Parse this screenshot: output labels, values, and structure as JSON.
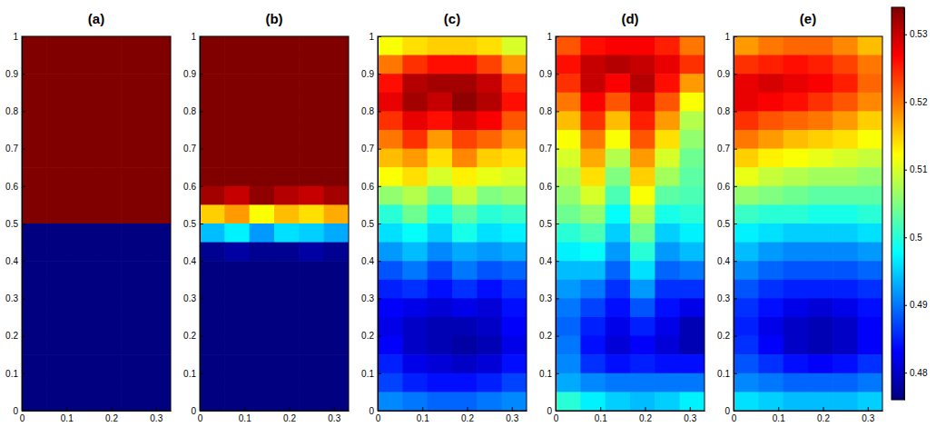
{
  "chart_data": [
    {
      "type": "heatmap",
      "title": "(a)",
      "color": "jet",
      "xlim": [
        0,
        0.333
      ],
      "ylim": [
        0,
        1
      ],
      "xticks": [
        0,
        0.1,
        0.2,
        0.3
      ],
      "yticks": [
        0,
        0.1,
        0.2,
        0.3,
        0.4,
        0.5,
        0.6,
        0.7,
        0.8,
        0.9,
        1
      ],
      "x_bins": [
        0,
        0.0555,
        0.111,
        0.1665,
        0.222,
        0.2775,
        0.333
      ],
      "y_bins": [
        1,
        0.95,
        0.9,
        0.85,
        0.8,
        0.75,
        0.7,
        0.65,
        0.6,
        0.55,
        0.5,
        0.45,
        0.4,
        0.35,
        0.3,
        0.25,
        0.2,
        0.15,
        0.1,
        0.05,
        0
      ],
      "cells": [
        [
          0.534,
          0.534,
          0.534,
          0.534,
          0.534,
          0.534
        ],
        [
          0.534,
          0.534,
          0.534,
          0.534,
          0.534,
          0.534
        ],
        [
          0.534,
          0.534,
          0.534,
          0.534,
          0.534,
          0.534
        ],
        [
          0.534,
          0.534,
          0.534,
          0.534,
          0.534,
          0.534
        ],
        [
          0.534,
          0.534,
          0.534,
          0.534,
          0.534,
          0.534
        ],
        [
          0.534,
          0.534,
          0.534,
          0.534,
          0.534,
          0.534
        ],
        [
          0.534,
          0.534,
          0.534,
          0.534,
          0.534,
          0.534
        ],
        [
          0.534,
          0.534,
          0.534,
          0.534,
          0.534,
          0.534
        ],
        [
          0.534,
          0.534,
          0.534,
          0.534,
          0.534,
          0.534
        ],
        [
          0.534,
          0.534,
          0.534,
          0.534,
          0.534,
          0.534
        ],
        [
          0.476,
          0.476,
          0.476,
          0.476,
          0.476,
          0.476
        ],
        [
          0.476,
          0.476,
          0.476,
          0.476,
          0.476,
          0.476
        ],
        [
          0.476,
          0.476,
          0.476,
          0.476,
          0.476,
          0.476
        ],
        [
          0.476,
          0.476,
          0.476,
          0.476,
          0.476,
          0.476
        ],
        [
          0.476,
          0.476,
          0.476,
          0.476,
          0.476,
          0.476
        ],
        [
          0.476,
          0.476,
          0.476,
          0.476,
          0.476,
          0.476
        ],
        [
          0.476,
          0.476,
          0.476,
          0.476,
          0.476,
          0.476
        ],
        [
          0.476,
          0.476,
          0.476,
          0.476,
          0.476,
          0.476
        ],
        [
          0.476,
          0.476,
          0.476,
          0.476,
          0.476,
          0.476
        ],
        [
          0.476,
          0.476,
          0.476,
          0.476,
          0.476,
          0.476
        ]
      ]
    },
    {
      "type": "heatmap",
      "title": "(b)",
      "color": "jet",
      "xlim": [
        0,
        0.333
      ],
      "ylim": [
        0,
        1
      ],
      "xticks": [
        0,
        0.1,
        0.2,
        0.3
      ],
      "yticks": [
        0,
        0.1,
        0.2,
        0.3,
        0.4,
        0.5,
        0.6,
        0.7,
        0.8,
        0.9,
        1
      ],
      "x_bins": [
        0,
        0.0555,
        0.111,
        0.1665,
        0.222,
        0.2775,
        0.333
      ],
      "y_bins": [
        1,
        0.95,
        0.9,
        0.85,
        0.8,
        0.75,
        0.7,
        0.65,
        0.6,
        0.55,
        0.5,
        0.45,
        0.4,
        0.35,
        0.3,
        0.25,
        0.2,
        0.15,
        0.1,
        0.05,
        0
      ],
      "cells": [
        [
          0.534,
          0.534,
          0.534,
          0.534,
          0.534,
          0.534
        ],
        [
          0.534,
          0.534,
          0.534,
          0.534,
          0.534,
          0.534
        ],
        [
          0.534,
          0.534,
          0.534,
          0.534,
          0.534,
          0.534
        ],
        [
          0.534,
          0.534,
          0.534,
          0.534,
          0.534,
          0.534
        ],
        [
          0.534,
          0.534,
          0.534,
          0.534,
          0.534,
          0.534
        ],
        [
          0.534,
          0.534,
          0.534,
          0.534,
          0.534,
          0.534
        ],
        [
          0.534,
          0.534,
          0.534,
          0.534,
          0.534,
          0.534
        ],
        [
          0.534,
          0.534,
          0.534,
          0.534,
          0.534,
          0.534
        ],
        [
          0.532,
          0.53,
          0.533,
          0.531,
          0.53,
          0.532
        ],
        [
          0.515,
          0.518,
          0.512,
          0.516,
          0.514,
          0.517
        ],
        [
          0.494,
          0.497,
          0.492,
          0.496,
          0.495,
          0.493
        ],
        [
          0.477,
          0.478,
          0.477,
          0.477,
          0.478,
          0.477
        ],
        [
          0.476,
          0.476,
          0.476,
          0.476,
          0.476,
          0.476
        ],
        [
          0.476,
          0.476,
          0.476,
          0.476,
          0.476,
          0.476
        ],
        [
          0.476,
          0.476,
          0.476,
          0.476,
          0.476,
          0.476
        ],
        [
          0.476,
          0.476,
          0.476,
          0.476,
          0.476,
          0.476
        ],
        [
          0.476,
          0.476,
          0.476,
          0.476,
          0.476,
          0.476
        ],
        [
          0.476,
          0.476,
          0.476,
          0.476,
          0.476,
          0.476
        ],
        [
          0.476,
          0.476,
          0.476,
          0.476,
          0.476,
          0.476
        ],
        [
          0.476,
          0.476,
          0.476,
          0.476,
          0.476,
          0.476
        ]
      ]
    },
    {
      "type": "heatmap",
      "title": "(c)",
      "color": "jet",
      "xlim": [
        0,
        0.333
      ],
      "ylim": [
        0,
        1
      ],
      "xticks": [
        0,
        0.1,
        0.2,
        0.3
      ],
      "yticks": [
        0,
        0.1,
        0.2,
        0.3,
        0.4,
        0.5,
        0.6,
        0.7,
        0.8,
        0.9,
        1
      ],
      "x_bins": [
        0,
        0.0555,
        0.111,
        0.1665,
        0.222,
        0.2775,
        0.333
      ],
      "y_bins": [
        1,
        0.95,
        0.9,
        0.85,
        0.8,
        0.75,
        0.7,
        0.65,
        0.6,
        0.55,
        0.5,
        0.45,
        0.4,
        0.35,
        0.3,
        0.25,
        0.2,
        0.15,
        0.1,
        0.05,
        0
      ],
      "cells": [
        [
          0.512,
          0.514,
          0.515,
          0.515,
          0.514,
          0.51
        ],
        [
          0.52,
          0.524,
          0.526,
          0.526,
          0.523,
          0.518
        ],
        [
          0.526,
          0.531,
          0.532,
          0.532,
          0.53,
          0.524
        ],
        [
          0.528,
          0.532,
          0.53,
          0.533,
          0.531,
          0.526
        ],
        [
          0.524,
          0.528,
          0.526,
          0.529,
          0.527,
          0.522
        ],
        [
          0.52,
          0.524,
          0.518,
          0.523,
          0.521,
          0.518
        ],
        [
          0.516,
          0.518,
          0.514,
          0.519,
          0.515,
          0.514
        ],
        [
          0.512,
          0.514,
          0.51,
          0.513,
          0.511,
          0.51
        ],
        [
          0.506,
          0.508,
          0.504,
          0.509,
          0.505,
          0.506
        ],
        [
          0.5,
          0.504,
          0.499,
          0.503,
          0.5,
          0.501
        ],
        [
          0.496,
          0.498,
          0.495,
          0.499,
          0.496,
          0.497
        ],
        [
          0.492,
          0.494,
          0.491,
          0.493,
          0.492,
          0.493
        ],
        [
          0.488,
          0.49,
          0.487,
          0.49,
          0.488,
          0.489
        ],
        [
          0.485,
          0.486,
          0.484,
          0.486,
          0.484,
          0.486
        ],
        [
          0.483,
          0.482,
          0.481,
          0.482,
          0.481,
          0.484
        ],
        [
          0.482,
          0.48,
          0.479,
          0.479,
          0.48,
          0.483
        ],
        [
          0.483,
          0.48,
          0.479,
          0.478,
          0.479,
          0.482
        ],
        [
          0.485,
          0.482,
          0.481,
          0.48,
          0.481,
          0.484
        ],
        [
          0.487,
          0.485,
          0.484,
          0.484,
          0.485,
          0.487
        ],
        [
          0.491,
          0.49,
          0.489,
          0.489,
          0.49,
          0.491
        ]
      ]
    },
    {
      "type": "heatmap",
      "title": "(d)",
      "color": "jet",
      "xlim": [
        0,
        0.333
      ],
      "ylim": [
        0,
        1
      ],
      "xticks": [
        0,
        0.1,
        0.2,
        0.3
      ],
      "yticks": [
        0,
        0.1,
        0.2,
        0.3,
        0.4,
        0.5,
        0.6,
        0.7,
        0.8,
        0.9,
        1
      ],
      "x_bins": [
        0,
        0.0555,
        0.111,
        0.1665,
        0.222,
        0.2775,
        0.333
      ],
      "y_bins": [
        1,
        0.95,
        0.9,
        0.85,
        0.8,
        0.75,
        0.7,
        0.65,
        0.6,
        0.55,
        0.5,
        0.45,
        0.4,
        0.35,
        0.3,
        0.25,
        0.2,
        0.15,
        0.1,
        0.05,
        0
      ],
      "cells": [
        [
          0.522,
          0.526,
          0.527,
          0.527,
          0.525,
          0.52
        ],
        [
          0.526,
          0.53,
          0.531,
          0.53,
          0.528,
          0.524
        ],
        [
          0.524,
          0.53,
          0.527,
          0.531,
          0.526,
          0.518
        ],
        [
          0.52,
          0.527,
          0.522,
          0.528,
          0.522,
          0.512
        ],
        [
          0.516,
          0.524,
          0.516,
          0.525,
          0.518,
          0.508
        ],
        [
          0.512,
          0.52,
          0.512,
          0.522,
          0.514,
          0.506
        ],
        [
          0.51,
          0.517,
          0.508,
          0.518,
          0.51,
          0.504
        ],
        [
          0.508,
          0.514,
          0.505,
          0.515,
          0.507,
          0.503
        ],
        [
          0.506,
          0.51,
          0.502,
          0.512,
          0.503,
          0.502
        ],
        [
          0.504,
          0.506,
          0.498,
          0.508,
          0.499,
          0.5
        ],
        [
          0.5,
          0.502,
          0.495,
          0.504,
          0.495,
          0.497
        ],
        [
          0.497,
          0.498,
          0.492,
          0.5,
          0.492,
          0.494
        ],
        [
          0.494,
          0.494,
          0.489,
          0.496,
          0.489,
          0.49
        ],
        [
          0.492,
          0.49,
          0.486,
          0.492,
          0.486,
          0.486
        ],
        [
          0.49,
          0.487,
          0.484,
          0.488,
          0.484,
          0.482
        ],
        [
          0.489,
          0.485,
          0.482,
          0.485,
          0.482,
          0.479
        ],
        [
          0.49,
          0.484,
          0.481,
          0.483,
          0.481,
          0.479
        ],
        [
          0.491,
          0.486,
          0.484,
          0.485,
          0.484,
          0.484
        ],
        [
          0.493,
          0.491,
          0.49,
          0.49,
          0.49,
          0.49
        ],
        [
          0.5,
          0.497,
          0.495,
          0.494,
          0.495,
          0.497
        ]
      ]
    },
    {
      "type": "heatmap",
      "title": "(e)",
      "color": "jet",
      "xlim": [
        0,
        0.333
      ],
      "ylim": [
        0,
        1
      ],
      "xticks": [
        0,
        0.1,
        0.2,
        0.3
      ],
      "yticks": [
        0,
        0.1,
        0.2,
        0.3,
        0.4,
        0.5,
        0.6,
        0.7,
        0.8,
        0.9,
        1
      ],
      "x_bins": [
        0,
        0.0555,
        0.111,
        0.1665,
        0.222,
        0.2775,
        0.333
      ],
      "y_bins": [
        1,
        0.95,
        0.9,
        0.85,
        0.8,
        0.75,
        0.7,
        0.65,
        0.6,
        0.55,
        0.5,
        0.45,
        0.4,
        0.35,
        0.3,
        0.25,
        0.2,
        0.15,
        0.1,
        0.05,
        0
      ],
      "cells": [
        [
          0.518,
          0.52,
          0.521,
          0.521,
          0.519,
          0.516
        ],
        [
          0.524,
          0.525,
          0.526,
          0.525,
          0.523,
          0.52
        ],
        [
          0.528,
          0.529,
          0.528,
          0.527,
          0.525,
          0.521
        ],
        [
          0.528,
          0.527,
          0.526,
          0.524,
          0.522,
          0.519
        ],
        [
          0.524,
          0.522,
          0.521,
          0.52,
          0.518,
          0.515
        ],
        [
          0.52,
          0.518,
          0.516,
          0.515,
          0.514,
          0.512
        ],
        [
          0.515,
          0.513,
          0.512,
          0.511,
          0.51,
          0.509
        ],
        [
          0.511,
          0.509,
          0.508,
          0.507,
          0.507,
          0.506
        ],
        [
          0.506,
          0.505,
          0.504,
          0.503,
          0.503,
          0.503
        ],
        [
          0.501,
          0.5,
          0.5,
          0.499,
          0.499,
          0.5
        ],
        [
          0.497,
          0.496,
          0.495,
          0.495,
          0.495,
          0.496
        ],
        [
          0.494,
          0.492,
          0.491,
          0.491,
          0.491,
          0.492
        ],
        [
          0.491,
          0.489,
          0.488,
          0.488,
          0.488,
          0.489
        ],
        [
          0.488,
          0.486,
          0.485,
          0.485,
          0.485,
          0.486
        ],
        [
          0.486,
          0.484,
          0.482,
          0.481,
          0.482,
          0.484
        ],
        [
          0.485,
          0.482,
          0.48,
          0.479,
          0.48,
          0.483
        ],
        [
          0.486,
          0.483,
          0.48,
          0.479,
          0.48,
          0.483
        ],
        [
          0.488,
          0.486,
          0.484,
          0.483,
          0.484,
          0.486
        ],
        [
          0.491,
          0.49,
          0.489,
          0.489,
          0.489,
          0.49
        ],
        [
          0.496,
          0.495,
          0.494,
          0.494,
          0.494,
          0.495
        ]
      ],
      "color_range": [
        0.476,
        0.534
      ],
      "color_ticks": [
        0.48,
        0.49,
        0.5,
        0.51,
        0.52,
        0.53
      ]
    }
  ]
}
